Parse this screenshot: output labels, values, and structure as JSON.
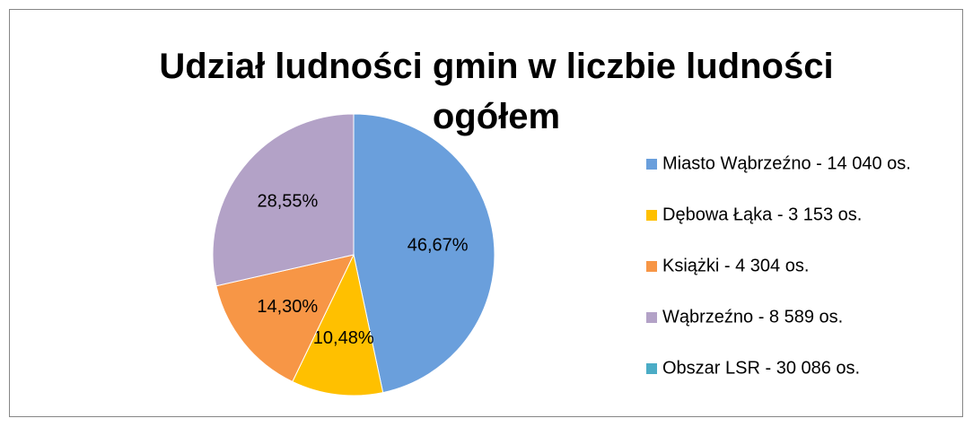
{
  "chart_data": {
    "type": "pie",
    "title": "Udział ludności gmin w liczbie ludności ogółem",
    "categories": [
      "Miasto Wąbrzeźno - 14 040 os.",
      "Dębowa Łąka - 3 153 os.",
      "Książki - 4 304 os.",
      "Wąbrzeźno - 8 589 os.",
      "Obszar LSR - 30 086 os."
    ],
    "values": [
      46.67,
      10.48,
      14.3,
      28.55,
      null
    ],
    "value_labels": [
      "46,67%",
      "10,48%",
      "14,30%",
      "28,55%",
      null
    ],
    "colors": [
      "#6a9fdc",
      "#ffc000",
      "#f79646",
      "#b3a2c7",
      "#4bacc6"
    ],
    "legend": "right"
  }
}
